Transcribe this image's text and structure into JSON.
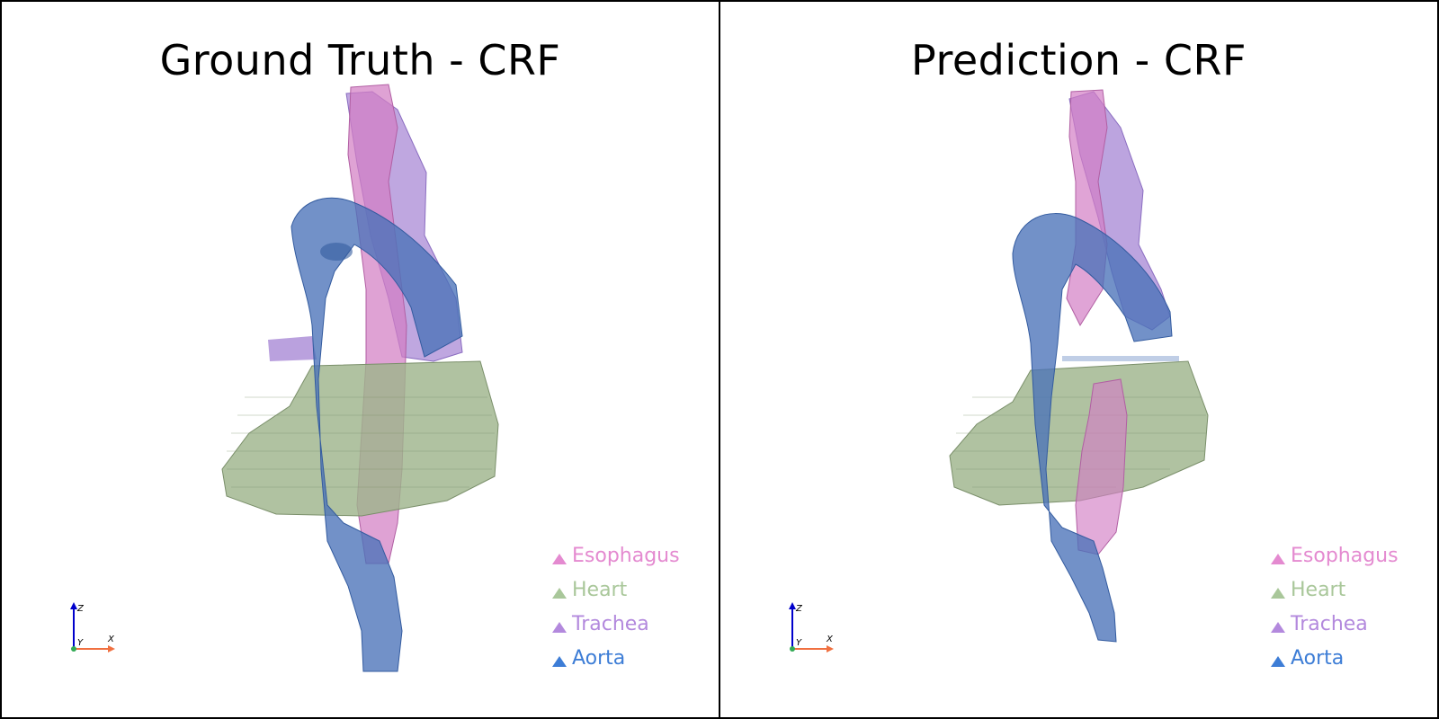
{
  "panels": [
    {
      "title": "Ground Truth - CRF"
    },
    {
      "title": "Prediction - CRF"
    }
  ],
  "legend": [
    {
      "label": "Esophagus",
      "color": "#e48ad0"
    },
    {
      "label": "Heart",
      "color": "#a9c79a"
    },
    {
      "label": "Trachea",
      "color": "#b389dd"
    },
    {
      "label": "Aorta",
      "color": "#3d7dd6"
    }
  ],
  "axes": {
    "x": "X",
    "y": "Y",
    "z": "Z"
  },
  "colors": {
    "esophagus": "#d37ec4",
    "heart": "#9fb58c",
    "trachea": "#a98ad6",
    "aorta": "#4a72b8"
  }
}
